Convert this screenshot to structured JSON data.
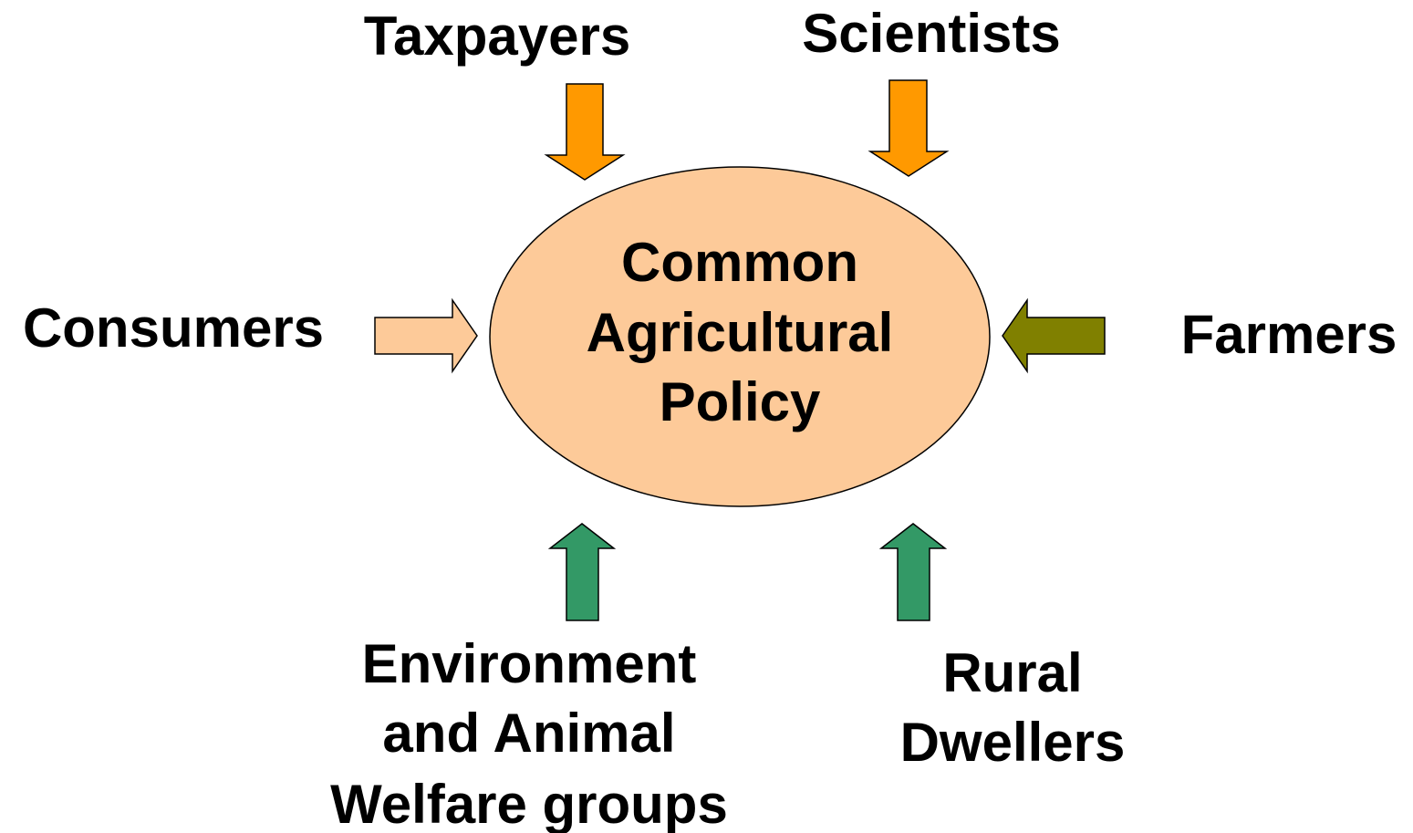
{
  "center": {
    "lines": [
      "Common",
      "Agricultural",
      "Policy"
    ]
  },
  "nodes": [
    {
      "label": [
        "Taxpayers"
      ]
    },
    {
      "label": [
        "Scientists"
      ]
    },
    {
      "label": [
        "Consumers"
      ]
    },
    {
      "label": [
        "Farmers"
      ]
    },
    {
      "label": [
        "Environment",
        "and Animal",
        "Welfare groups"
      ]
    },
    {
      "label": [
        "Rural",
        "Dwellers"
      ]
    }
  ]
}
